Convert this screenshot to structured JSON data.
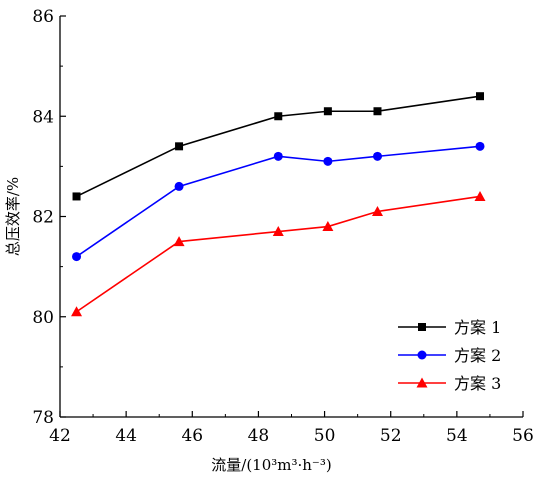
{
  "chart_data": {
    "type": "line",
    "title": "",
    "xlabel": "流量/(10³m³·h⁻³)",
    "ylabel": "总压效率/%",
    "xlim": [
      42,
      56
    ],
    "ylim": [
      78,
      86
    ],
    "xticks": [
      42,
      44,
      46,
      48,
      50,
      52,
      54,
      56
    ],
    "yticks": [
      78,
      80,
      82,
      84,
      86
    ],
    "grid": false,
    "legend_position": "bottom-right",
    "series": [
      {
        "name": "方案 1",
        "color": "#000000",
        "marker": "square",
        "x": [
          42.5,
          45.6,
          48.6,
          50.1,
          51.6,
          54.7
        ],
        "y": [
          82.4,
          83.4,
          84.0,
          84.1,
          84.1,
          84.4
        ]
      },
      {
        "name": "方案 2",
        "color": "#0000ff",
        "marker": "circle",
        "x": [
          42.5,
          45.6,
          48.6,
          50.1,
          51.6,
          54.7
        ],
        "y": [
          81.2,
          82.6,
          83.2,
          83.1,
          83.2,
          83.4
        ]
      },
      {
        "name": "方案 3",
        "color": "#ff0000",
        "marker": "triangle",
        "x": [
          42.5,
          45.6,
          48.6,
          50.1,
          51.6,
          54.7
        ],
        "y": [
          80.1,
          81.5,
          81.7,
          81.8,
          82.1,
          82.4
        ]
      }
    ]
  }
}
